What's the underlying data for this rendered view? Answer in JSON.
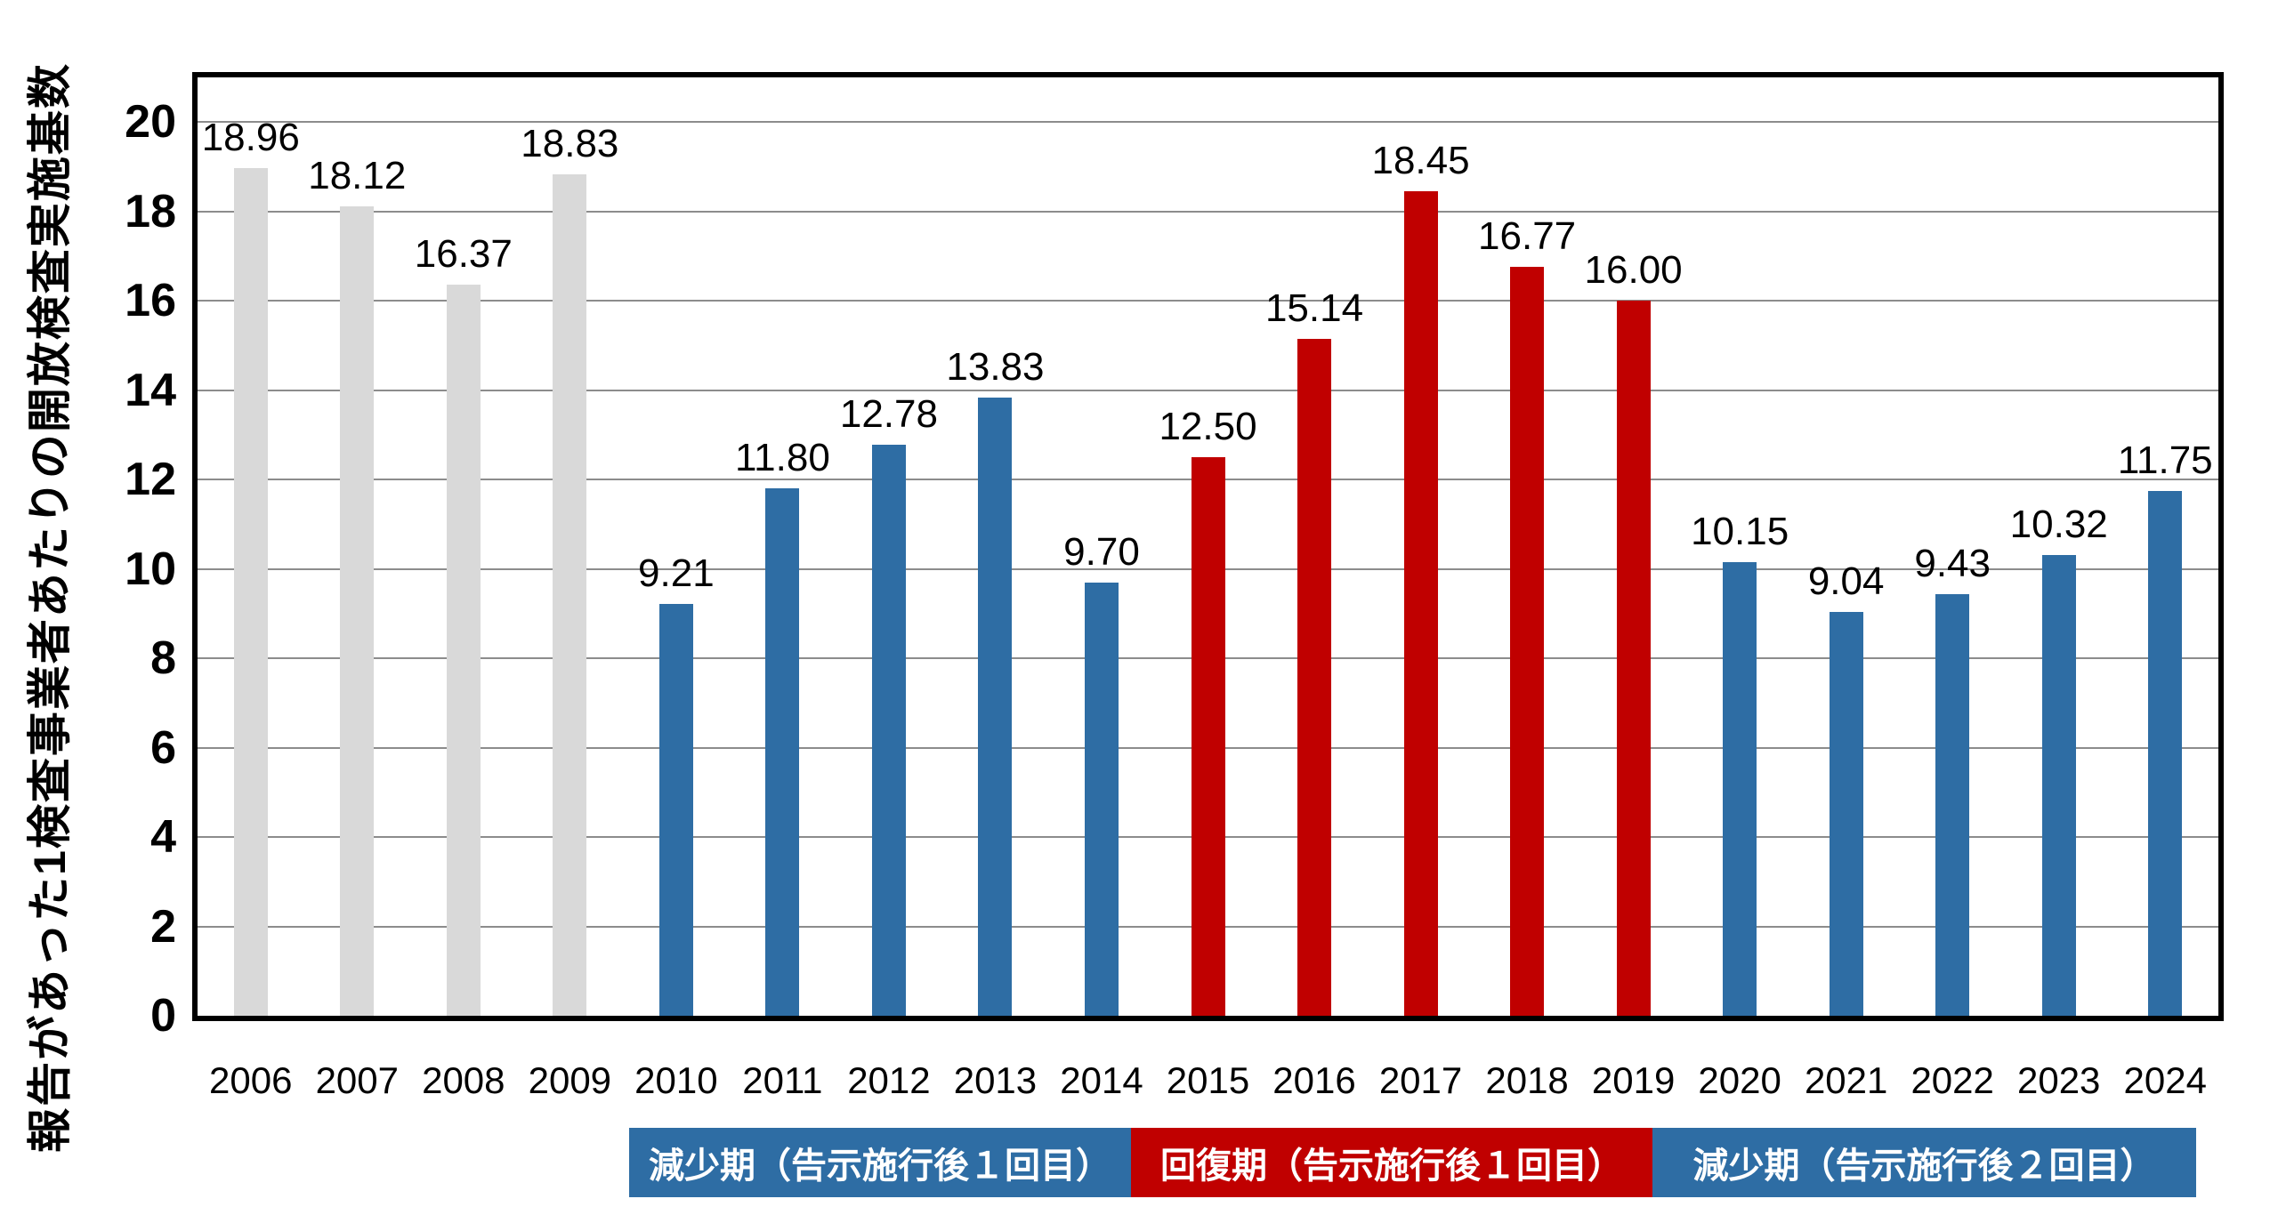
{
  "chart_data": {
    "type": "bar",
    "title": "",
    "xlabel": "",
    "ylabel": "報告があった1検査事業者あたりの開放検査実施基数",
    "ylim": [
      0,
      21
    ],
    "ytick_step": 2,
    "ytick_labels": [
      "0",
      "2",
      "4",
      "6",
      "8",
      "10",
      "12",
      "14",
      "16",
      "18",
      "20"
    ],
    "grid": true,
    "categories": [
      "2006",
      "2007",
      "2008",
      "2009",
      "2010",
      "2011",
      "2012",
      "2013",
      "2014",
      "2015",
      "2016",
      "2017",
      "2018",
      "2019",
      "2020",
      "2021",
      "2022",
      "2023",
      "2024"
    ],
    "series": [
      {
        "name": "開放検査実施基数",
        "values": [
          18.96,
          18.12,
          16.37,
          18.83,
          9.21,
          11.8,
          12.78,
          13.83,
          9.7,
          12.5,
          15.14,
          18.45,
          16.77,
          16.0,
          10.15,
          9.04,
          9.43,
          10.32,
          11.75
        ]
      }
    ],
    "value_labels": [
      "18.96",
      "18.12",
      "16.37",
      "18.83",
      "9.21",
      "11.80",
      "12.78",
      "13.83",
      "9.70",
      "12.50",
      "15.14",
      "18.45",
      "16.77",
      "16.00",
      "10.15",
      "9.04",
      "9.43",
      "10.32",
      "11.75"
    ],
    "bar_colors": [
      "#D9D9D9",
      "#D9D9D9",
      "#D9D9D9",
      "#D9D9D9",
      "#2E6DA4",
      "#2E6DA4",
      "#2E6DA4",
      "#2E6DA4",
      "#2E6DA4",
      "#C00000",
      "#C00000",
      "#C00000",
      "#C00000",
      "#C00000",
      "#2E6DA4",
      "#2E6DA4",
      "#2E6DA4",
      "#2E6DA4",
      "#2E6DA4"
    ],
    "period_bands": [
      {
        "label": "減少期（告示施行後１回目）",
        "color": "#2E6DA4",
        "from": "2010",
        "to": "2014"
      },
      {
        "label": "回復期（告示施行後１回目）",
        "color": "#C00000",
        "from": "2015",
        "to": "2019"
      },
      {
        "label": "減少期（告示施行後２回目）",
        "color": "#2E6DA4",
        "from": "2020",
        "to": "2024"
      }
    ],
    "colors": {
      "gray_bar": "#D9D9D9",
      "blue_bar": "#2E6DA4",
      "red_bar": "#C00000",
      "gridline": "#8C8C8C",
      "axis": "#000000",
      "band_text": "#FFFFFF"
    },
    "legend_position": "bottom"
  }
}
